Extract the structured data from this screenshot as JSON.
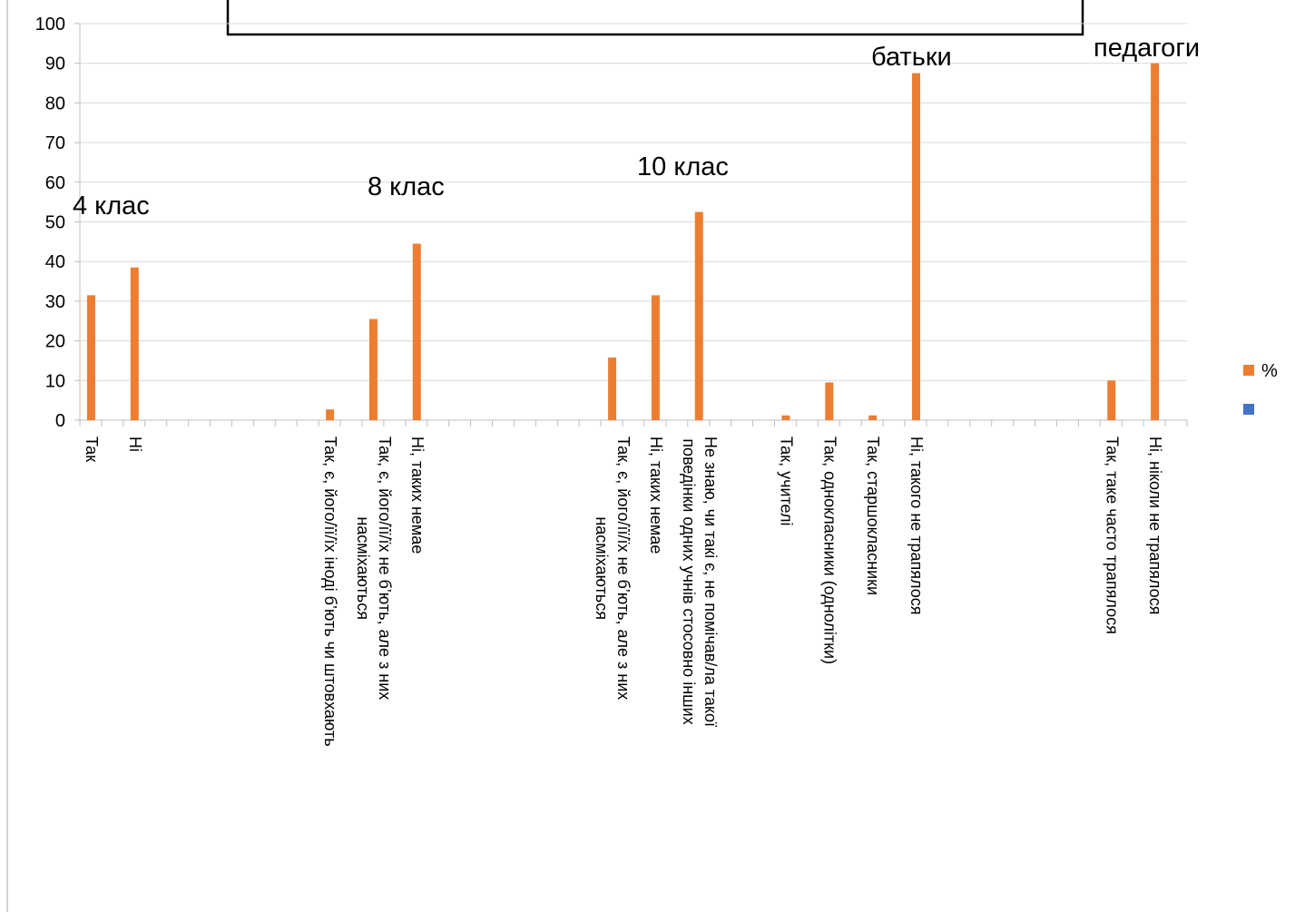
{
  "chart_data": {
    "type": "bar",
    "categories": [
      "Так",
      null,
      "Ні",
      null,
      null,
      null,
      null,
      null,
      null,
      null,
      null,
      "Так, є, його/її/їх іноді б’ють чи штовхають",
      null,
      "Так, є, його/її/їх не б’ють, але з них\nнасміхаються",
      null,
      "Ні, таких немае",
      null,
      null,
      null,
      null,
      null,
      null,
      null,
      null,
      "Так, є, його/її/їх не б’ють, але з них\nнасміхаються",
      null,
      "Ні, таких немае",
      null,
      "Не знаю, чи такі є, не помічав/ла такої\nповедінки одних учнів стосовно інших",
      null,
      null,
      null,
      "Так, учителі",
      null,
      "Так, однокласники (однолітки)",
      null,
      "Так, старшокласники",
      null,
      "Ні, такого не трапялося",
      null,
      null,
      null,
      null,
      null,
      null,
      null,
      null,
      "Так, таке часто трапялося",
      null,
      "Ні, ніколи не трапялося",
      null
    ],
    "series": [
      {
        "name": "%",
        "color": "#ed7d31",
        "values": [
          31.5,
          null,
          38.5,
          null,
          null,
          null,
          null,
          null,
          null,
          null,
          null,
          2.7,
          null,
          25.5,
          null,
          44.5,
          null,
          null,
          null,
          null,
          null,
          null,
          null,
          null,
          15.8,
          null,
          31.5,
          null,
          52.5,
          null,
          null,
          null,
          1.2,
          null,
          9.5,
          null,
          1.2,
          null,
          87.5,
          null,
          null,
          null,
          null,
          null,
          null,
          null,
          null,
          10,
          null,
          90,
          null
        ]
      },
      {
        "color": "#4472c4"
      }
    ],
    "annotations": [
      "4 клас",
      "8 клас",
      "10 клас",
      "батьки",
      "педагоги"
    ],
    "ylim": [
      0,
      100
    ],
    "yticks": [
      0,
      10,
      20,
      30,
      40,
      50,
      60,
      70,
      80,
      90,
      100
    ],
    "grid": true
  }
}
